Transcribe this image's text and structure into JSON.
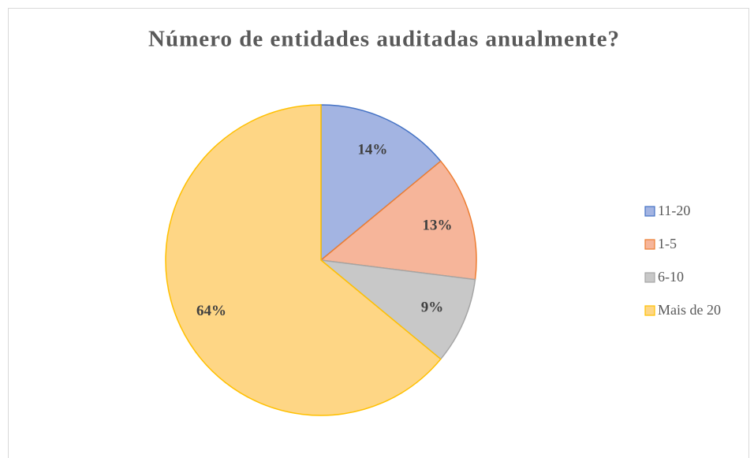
{
  "chart_data": {
    "type": "pie",
    "title": "Número de entidades auditadas anualmente?",
    "categories": [
      "11-20",
      "1-5",
      "6-10",
      "Mais de 20"
    ],
    "values": [
      14,
      13,
      9,
      64
    ],
    "value_labels": [
      "14%",
      "13%",
      "9%",
      "64%"
    ],
    "colors": [
      "#a3b4e2",
      "#f6b59a",
      "#c8c8c8",
      "#fed685"
    ],
    "edge_colors": [
      "#4472c4",
      "#ed7d31",
      "#a5a5a5",
      "#ffc000"
    ],
    "legend": "right"
  }
}
